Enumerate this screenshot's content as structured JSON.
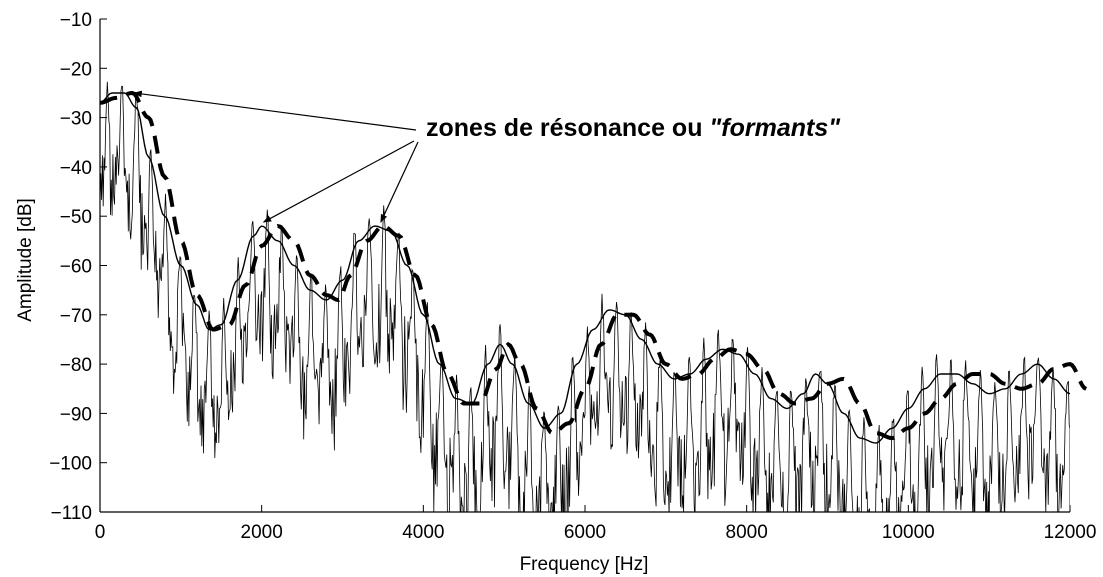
{
  "chart_data": {
    "type": "line",
    "xlabel": "Frequency [Hz]",
    "ylabel": "Amplitude [dB]",
    "xlim": [
      0,
      12000
    ],
    "ylim": [
      -110,
      -10
    ],
    "xticks": [
      0,
      2000,
      4000,
      6000,
      8000,
      10000,
      12000
    ],
    "yticks": [
      -10,
      -20,
      -30,
      -40,
      -50,
      -60,
      -70,
      -80,
      -90,
      -100,
      -110
    ],
    "grid": false,
    "annotation": {
      "text_main": "zones de résonance ou ",
      "text_italic": "\"formants\"",
      "arrow_targets": [
        [
          300,
          -25
        ],
        [
          1950,
          -52
        ],
        [
          3400,
          -52
        ]
      ]
    },
    "series": [
      {
        "style": "thin-solid",
        "x": [
          0,
          150,
          300,
          450,
          600,
          800,
          1000,
          1200,
          1350,
          1500,
          1700,
          1900,
          2000,
          2200,
          2400,
          2600,
          2800,
          3000,
          3200,
          3400,
          3600,
          3800,
          4000,
          4200,
          4400,
          4600,
          4800,
          4950,
          5100,
          5300,
          5500,
          5700,
          5900,
          6100,
          6300,
          6500,
          6700,
          6900,
          7100,
          7300,
          7500,
          7700,
          7900,
          8100,
          8300,
          8500,
          8700,
          8850,
          9000,
          9200,
          9400,
          9600,
          9800,
          10000,
          10200,
          10400,
          10600,
          10800,
          11000,
          11200,
          11400,
          11600,
          11800,
          12000
        ],
        "y": [
          -27,
          -25,
          -25,
          -28,
          -38,
          -50,
          -60,
          -68,
          -73,
          -72,
          -63,
          -54,
          -52,
          -55,
          -60,
          -65,
          -67,
          -63,
          -55,
          -52,
          -53,
          -60,
          -70,
          -80,
          -87,
          -88,
          -80,
          -76,
          -80,
          -88,
          -93,
          -90,
          -80,
          -73,
          -69,
          -70,
          -75,
          -80,
          -83,
          -82,
          -79,
          -77,
          -78,
          -82,
          -87,
          -89,
          -86,
          -82,
          -84,
          -90,
          -95,
          -96,
          -93,
          -89,
          -85,
          -82,
          -82,
          -84,
          -86,
          -85,
          -82,
          -80,
          -83,
          -86
        ]
      },
      {
        "style": "thick-dashed",
        "x": [
          0,
          200,
          400,
          600,
          800,
          1000,
          1200,
          1400,
          1600,
          1800,
          2000,
          2200,
          2400,
          2600,
          2800,
          2950,
          3100,
          3300,
          3500,
          3700,
          3900,
          4100,
          4300,
          4500,
          4700,
          4900,
          5050,
          5200,
          5400,
          5600,
          5800,
          6000,
          6200,
          6400,
          6600,
          6800,
          7000,
          7200,
          7400,
          7600,
          7800,
          8000,
          8200,
          8400,
          8600,
          8800,
          9000,
          9200,
          9400,
          9600,
          9800,
          10000,
          10200,
          10400,
          10600,
          10800,
          11000,
          11200,
          11400,
          11600,
          11800,
          12000,
          12200
        ],
        "y": [
          -27,
          -26,
          -25,
          -30,
          -42,
          -55,
          -66,
          -73,
          -72,
          -64,
          -56,
          -52,
          -55,
          -62,
          -66,
          -67,
          -62,
          -55,
          -52,
          -54,
          -62,
          -72,
          -82,
          -88,
          -88,
          -81,
          -76,
          -80,
          -89,
          -94,
          -92,
          -85,
          -76,
          -70,
          -70,
          -74,
          -80,
          -83,
          -82,
          -79,
          -77,
          -78,
          -81,
          -86,
          -88,
          -87,
          -84,
          -83,
          -88,
          -94,
          -95,
          -93,
          -90,
          -87,
          -84,
          -82,
          -82,
          -84,
          -85,
          -84,
          -81,
          -80,
          -85
        ]
      },
      {
        "style": "harmonics",
        "f0": 180
      }
    ]
  }
}
